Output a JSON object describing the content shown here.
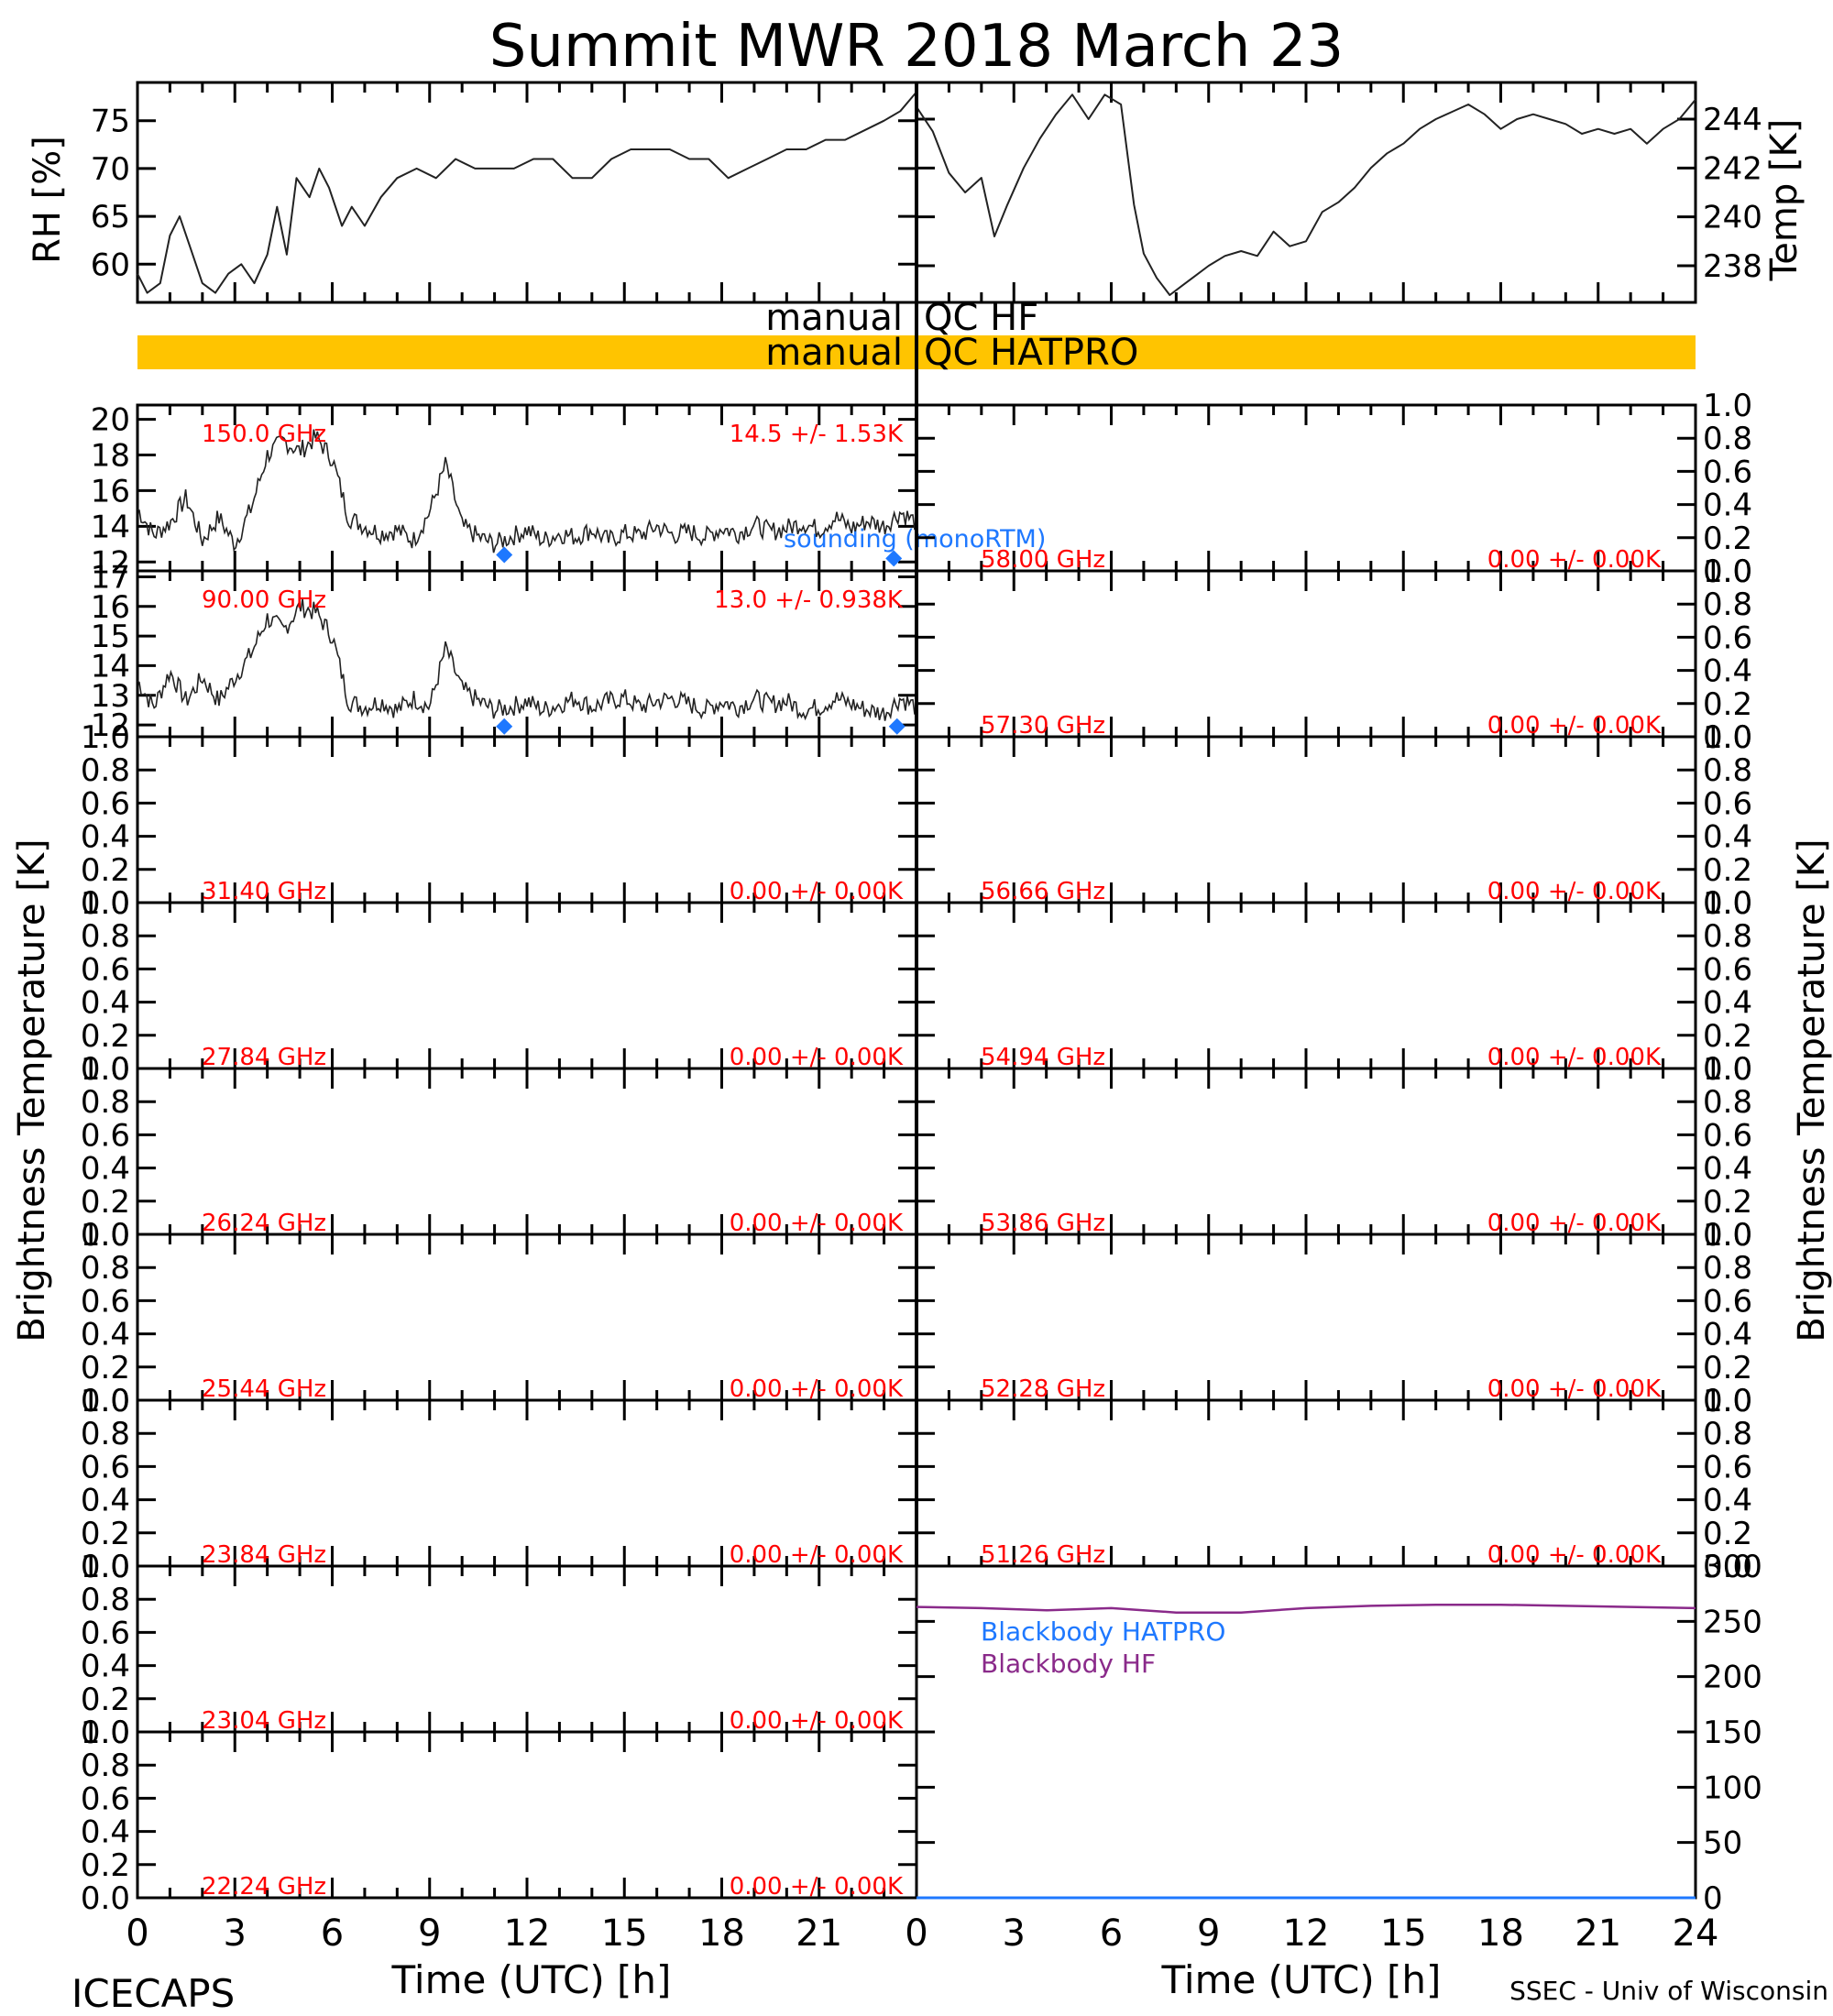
{
  "title": "Summit MWR 2018 March 23",
  "colors": {
    "axis": "#000000",
    "trace": "#222222",
    "channel_label": "#ff0000",
    "sounding": "#1e78ff",
    "qc_bar": "#ffc400",
    "blackbody_hf": "#8a2a8a",
    "blackbody_hatpro": "#1e78ff"
  },
  "footer": {
    "left": "ICECAPS",
    "right": "SSEC - Univ of Wisconsin",
    "xlabel": "Time (UTC) [h]"
  },
  "qc": {
    "hf_left": "manual",
    "hf_right": "QC HF",
    "hatpro_left": "manual",
    "hatpro_right": "QC HATPRO"
  },
  "legend": {
    "sounding": "sounding (monoRTM)",
    "bb_hatpro": "Blackbody HATPRO",
    "bb_hf": "Blackbody HF"
  },
  "chart_data": [
    {
      "type": "line",
      "panel": "rh",
      "ylabel": "RH [%]",
      "xlim": [
        0,
        24
      ],
      "ylim": [
        56,
        79
      ],
      "yticks": [
        60,
        65,
        70,
        75
      ],
      "x": [
        0,
        0.3,
        0.7,
        1.0,
        1.3,
        1.6,
        2.0,
        2.4,
        2.8,
        3.2,
        3.6,
        4.0,
        4.3,
        4.6,
        4.9,
        5.3,
        5.6,
        5.9,
        6.3,
        6.6,
        7.0,
        7.5,
        8.0,
        8.6,
        9.2,
        9.8,
        10.4,
        11.0,
        11.6,
        12.2,
        12.8,
        13.4,
        14.0,
        14.6,
        15.2,
        15.8,
        16.4,
        17.0,
        17.6,
        18.2,
        18.8,
        19.4,
        20.0,
        20.6,
        21.2,
        21.8,
        22.4,
        23.0,
        23.5,
        24.0
      ],
      "y": [
        59,
        57,
        58,
        63,
        65,
        62,
        58,
        57,
        59,
        60,
        58,
        61,
        66,
        61,
        69,
        67,
        70,
        68,
        64,
        66,
        64,
        67,
        69,
        70,
        69,
        71,
        70,
        70,
        70,
        71,
        71,
        69,
        69,
        71,
        72,
        72,
        72,
        71,
        71,
        69,
        70,
        71,
        72,
        72,
        73,
        73,
        74,
        75,
        76,
        78
      ]
    },
    {
      "type": "line",
      "panel": "temp",
      "ylabel": "Temp [K]",
      "xlim": [
        0,
        24
      ],
      "ylim": [
        236.5,
        245.5
      ],
      "yticks": [
        238,
        240,
        242,
        244
      ],
      "x": [
        0,
        0.5,
        1.0,
        1.5,
        2.0,
        2.4,
        2.8,
        3.3,
        3.8,
        4.3,
        4.8,
        5.3,
        5.8,
        6.3,
        6.7,
        7.0,
        7.4,
        7.8,
        8.2,
        8.6,
        9.0,
        9.5,
        10.0,
        10.5,
        11.0,
        11.5,
        12.0,
        12.5,
        13.0,
        13.5,
        14.0,
        14.5,
        15.0,
        15.5,
        16.0,
        16.5,
        17.0,
        17.5,
        18.0,
        18.5,
        19.0,
        19.5,
        20.0,
        20.5,
        21.0,
        21.5,
        22.0,
        22.5,
        23.0,
        23.5,
        24.0
      ],
      "y": [
        244.5,
        243.5,
        241.8,
        241.0,
        241.6,
        239.2,
        240.5,
        242.0,
        243.2,
        244.2,
        245.0,
        244.0,
        245.0,
        244.6,
        240.5,
        238.5,
        237.5,
        236.8,
        237.2,
        237.6,
        238.0,
        238.4,
        238.6,
        238.4,
        239.4,
        238.8,
        239.0,
        240.2,
        240.6,
        241.2,
        242.0,
        242.6,
        243.0,
        243.6,
        244.0,
        244.3,
        244.6,
        244.2,
        243.6,
        244.0,
        244.2,
        244.0,
        243.8,
        243.4,
        243.6,
        243.4,
        243.6,
        243.0,
        243.6,
        244.0,
        244.8
      ]
    },
    {
      "type": "line",
      "panel": "tb-150",
      "label": "150.0 GHz",
      "stat": "14.5 +/-  1.53K",
      "xlim": [
        0,
        24
      ],
      "ylim": [
        11.5,
        20.8
      ],
      "yticks": [
        12,
        14,
        16,
        18,
        20
      ],
      "x": [
        0,
        0.5,
        1.0,
        1.5,
        2.0,
        2.5,
        3.0,
        3.5,
        4.0,
        4.5,
        5.0,
        5.5,
        6.0,
        6.5,
        7.0,
        7.5,
        8.0,
        8.5,
        9.0,
        9.5,
        10.0,
        10.5,
        11.0,
        11.5,
        12.0,
        12.5,
        13.0,
        13.5,
        14.0,
        14.5,
        15.0,
        15.5,
        16.0,
        16.5,
        17.0,
        17.5,
        18.0,
        18.5,
        19.0,
        19.5,
        20.0,
        20.5,
        21.0,
        21.5,
        22.0,
        22.5,
        23.0,
        23.5,
        24.0
      ],
      "y": [
        15.0,
        13.5,
        14.2,
        15.6,
        13.2,
        14.5,
        13.0,
        15.0,
        18.0,
        18.8,
        18.2,
        19.0,
        17.8,
        14.5,
        14.0,
        13.6,
        13.8,
        13.2,
        14.8,
        17.5,
        14.0,
        13.4,
        13.0,
        13.4,
        13.8,
        13.2,
        13.6,
        13.4,
        13.8,
        13.2,
        13.6,
        13.5,
        14.0,
        13.5,
        13.7,
        13.4,
        13.9,
        13.6,
        14.1,
        13.7,
        13.9,
        14.2,
        13.8,
        14.5,
        13.9,
        14.3,
        14.0,
        14.8,
        14.2
      ],
      "sounding_points": [
        {
          "x": 11.3,
          "y": 12.4
        },
        {
          "x": 23.3,
          "y": 12.2
        }
      ]
    },
    {
      "type": "line",
      "panel": "tb-90",
      "label": "90.00 GHz",
      "stat": "13.0 +/- 0.938K",
      "xlim": [
        0,
        24
      ],
      "ylim": [
        11.6,
        17.2
      ],
      "yticks": [
        12,
        13,
        14,
        15,
        16,
        17
      ],
      "x": [
        0,
        0.5,
        1.0,
        1.5,
        2.0,
        2.5,
        3.0,
        3.5,
        4.0,
        4.5,
        5.0,
        5.5,
        6.0,
        6.5,
        7.0,
        7.5,
        8.0,
        8.5,
        9.0,
        9.5,
        10.0,
        10.5,
        11.0,
        11.5,
        12.0,
        12.5,
        13.0,
        13.5,
        14.0,
        14.5,
        15.0,
        15.5,
        16.0,
        16.5,
        17.0,
        17.5,
        18.0,
        18.5,
        19.0,
        19.5,
        20.0,
        20.5,
        21.0,
        21.5,
        22.0,
        22.5,
        23.0,
        23.5,
        24.0
      ],
      "y": [
        13.5,
        12.6,
        13.8,
        12.8,
        13.6,
        12.8,
        13.6,
        14.4,
        15.6,
        15.2,
        16.0,
        15.8,
        15.0,
        12.8,
        12.6,
        12.8,
        12.5,
        12.9,
        12.6,
        14.6,
        13.2,
        12.8,
        12.5,
        12.6,
        12.8,
        12.5,
        12.7,
        12.9,
        12.6,
        12.8,
        12.9,
        12.6,
        12.8,
        12.9,
        12.7,
        12.5,
        12.8,
        12.6,
        12.9,
        12.7,
        12.8,
        12.5,
        12.6,
        12.9,
        12.7,
        12.5,
        12.4,
        12.9,
        12.6
      ],
      "sounding_points": [
        {
          "x": 11.3,
          "y": 11.95
        },
        {
          "x": 23.4,
          "y": 11.95
        }
      ]
    },
    {
      "type": "line",
      "panel": "tb-empty",
      "label": "31.40 GHz",
      "stat": "0.00 +/-  0.00K",
      "ylim": [
        0,
        1
      ]
    },
    {
      "type": "line",
      "panel": "tb-empty",
      "label": "27.84 GHz",
      "stat": "0.00 +/-  0.00K",
      "ylim": [
        0,
        1
      ]
    },
    {
      "type": "line",
      "panel": "tb-empty",
      "label": "26.24 GHz",
      "stat": "0.00 +/-  0.00K",
      "ylim": [
        0,
        1
      ]
    },
    {
      "type": "line",
      "panel": "tb-empty",
      "label": "25.44 GHz",
      "stat": "0.00 +/-  0.00K",
      "ylim": [
        0,
        1
      ]
    },
    {
      "type": "line",
      "panel": "tb-empty",
      "label": "23.84 GHz",
      "stat": "0.00 +/-  0.00K",
      "ylim": [
        0,
        1
      ]
    },
    {
      "type": "line",
      "panel": "tb-empty",
      "label": "23.04 GHz",
      "stat": "0.00 +/-  0.00K",
      "ylim": [
        0,
        1
      ]
    },
    {
      "type": "line",
      "panel": "tb-empty",
      "label": "22.24 GHz",
      "stat": "0.00 +/-  0.00K",
      "ylim": [
        0,
        1
      ]
    },
    {
      "type": "line",
      "panel": "tb-empty",
      "label": "58.00 GHz",
      "stat": "0.00 +/-  0.00K",
      "ylim": [
        0,
        1
      ]
    },
    {
      "type": "line",
      "panel": "tb-empty",
      "label": "57.30 GHz",
      "stat": "0.00 +/-  0.00K",
      "ylim": [
        0,
        1
      ]
    },
    {
      "type": "line",
      "panel": "tb-empty",
      "label": "56.66 GHz",
      "stat": "0.00 +/-  0.00K",
      "ylim": [
        0,
        1
      ]
    },
    {
      "type": "line",
      "panel": "tb-empty",
      "label": "54.94 GHz",
      "stat": "0.00 +/-  0.00K",
      "ylim": [
        0,
        1
      ]
    },
    {
      "type": "line",
      "panel": "tb-empty",
      "label": "53.86 GHz",
      "stat": "0.00 +/-  0.00K",
      "ylim": [
        0,
        1
      ]
    },
    {
      "type": "line",
      "panel": "tb-empty",
      "label": "52.28 GHz",
      "stat": "0.00 +/-  0.00K",
      "ylim": [
        0,
        1
      ]
    },
    {
      "type": "line",
      "panel": "tb-empty",
      "label": "51.26 GHz",
      "stat": "0.00 +/-  0.00K",
      "ylim": [
        0,
        1
      ]
    },
    {
      "type": "line",
      "panel": "blackbody",
      "ylabel": "Temp [K]",
      "xlim": [
        0,
        24
      ],
      "ylim": [
        0,
        300
      ],
      "yticks": [
        0,
        50,
        100,
        150,
        200,
        250,
        300
      ],
      "series": [
        {
          "name": "Blackbody HF",
          "x": [
            0,
            2,
            4,
            6,
            8,
            10,
            12,
            14,
            16,
            18,
            20,
            22,
            24
          ],
          "y": [
            263,
            262,
            260,
            262,
            258,
            258,
            262,
            264,
            265,
            265,
            264,
            263,
            262
          ]
        },
        {
          "name": "Blackbody HATPRO",
          "x": [
            0,
            24
          ],
          "y": [
            0,
            0
          ]
        }
      ]
    }
  ],
  "axes": {
    "xticks": [
      "0",
      "3",
      "6",
      "9",
      "12",
      "15",
      "18",
      "21"
    ],
    "xticks_right_end": "24",
    "tb_yticks": [
      "0.0",
      "0.2",
      "0.4",
      "0.6",
      "0.8",
      "1.0"
    ],
    "tb_ylabel": "Brightness Temperature [K]"
  }
}
